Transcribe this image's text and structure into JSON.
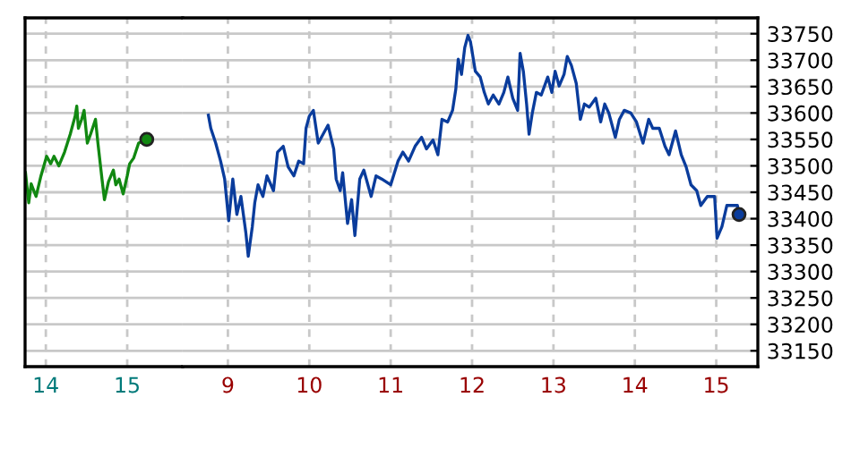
{
  "chart_data": [
    {
      "type": "line",
      "tick_labels": "x",
      "xlim": [
        13.745,
        15.681
      ],
      "xticks": [
        14,
        15
      ],
      "ylim": [
        33120,
        33780
      ],
      "yticks": [
        33150,
        33200,
        33250,
        33300,
        33350,
        33400,
        33450,
        33500,
        33550,
        33600,
        33650,
        33700,
        33750
      ],
      "grid": true,
      "series": [
        {
          "color": "#118811",
          "x": [
            13.75,
            13.79,
            13.82,
            13.88,
            13.94,
            14.01,
            14.06,
            14.1,
            14.16,
            14.23,
            14.3,
            14.36,
            14.38,
            14.4,
            14.44,
            14.47,
            14.51,
            14.55,
            14.61,
            14.64,
            14.69,
            14.72,
            14.77,
            14.83,
            14.86,
            14.9,
            14.95,
            15.0,
            15.03,
            15.08,
            15.14,
            15.24
          ],
          "values": [
            33487,
            33430,
            33466,
            33442,
            33481,
            33518,
            33504,
            33518,
            33500,
            33526,
            33560,
            33594,
            33613,
            33571,
            33588,
            33605,
            33543,
            33560,
            33588,
            33543,
            33475,
            33436,
            33470,
            33492,
            33464,
            33475,
            33447,
            33481,
            33504,
            33515,
            33543,
            33550
          ]
        }
      ]
    },
    {
      "type": "line",
      "xlim": [
        8.444,
        15.511
      ],
      "xticks": [
        9,
        10,
        11,
        12,
        13,
        14,
        15
      ],
      "ylim": [
        33120,
        33780
      ],
      "yticks": [
        33150,
        33200,
        33250,
        33300,
        33350,
        33400,
        33450,
        33500,
        33550,
        33600,
        33650,
        33700,
        33750
      ],
      "grid": true,
      "series": [
        {
          "color": "#0a3c9c",
          "x": [
            8.76,
            8.79,
            8.85,
            8.91,
            8.96,
            9.01,
            9.06,
            9.11,
            9.16,
            9.22,
            9.25,
            9.3,
            9.33,
            9.37,
            9.43,
            9.48,
            9.56,
            9.61,
            9.68,
            9.74,
            9.81,
            9.87,
            9.93,
            9.96,
            10.0,
            10.05,
            10.11,
            10.17,
            10.23,
            10.3,
            10.33,
            10.38,
            10.41,
            10.47,
            10.52,
            10.56,
            10.62,
            10.67,
            10.76,
            10.82,
            10.89,
            11.0,
            11.09,
            11.15,
            11.22,
            11.3,
            11.38,
            11.44,
            11.52,
            11.58,
            11.63,
            11.7,
            11.76,
            11.8,
            11.83,
            11.87,
            11.91,
            11.95,
            11.98,
            12.04,
            12.1,
            12.15,
            12.2,
            12.26,
            12.33,
            12.39,
            12.44,
            12.5,
            12.56,
            12.59,
            12.63,
            12.67,
            12.7,
            12.74,
            12.79,
            12.85,
            12.93,
            12.98,
            13.02,
            13.07,
            13.13,
            13.17,
            13.22,
            13.28,
            13.33,
            13.38,
            13.44,
            13.52,
            13.58,
            13.63,
            13.68,
            13.76,
            13.81,
            13.87,
            13.95,
            14.02,
            14.1,
            14.17,
            14.22,
            14.3,
            14.37,
            14.42,
            14.5,
            14.57,
            14.63,
            14.69,
            14.76,
            14.81,
            14.89,
            14.98,
            15.01,
            15.07,
            15.13,
            15.26,
            15.28
          ],
          "values": [
            33596,
            33571,
            33543,
            33509,
            33475,
            33396,
            33475,
            33408,
            33442,
            33374,
            33329,
            33385,
            33430,
            33464,
            33442,
            33481,
            33453,
            33526,
            33537,
            33498,
            33481,
            33509,
            33504,
            33571,
            33594,
            33605,
            33543,
            33560,
            33577,
            33532,
            33475,
            33453,
            33487,
            33391,
            33436,
            33368,
            33475,
            33492,
            33442,
            33481,
            33475,
            33464,
            33509,
            33526,
            33509,
            33537,
            33554,
            33532,
            33549,
            33521,
            33588,
            33583,
            33605,
            33645,
            33702,
            33673,
            33724,
            33747,
            33735,
            33679,
            33668,
            33639,
            33617,
            33634,
            33617,
            33639,
            33668,
            33628,
            33605,
            33713,
            33679,
            33617,
            33560,
            33600,
            33639,
            33634,
            33668,
            33639,
            33679,
            33651,
            33673,
            33707,
            33690,
            33656,
            33588,
            33617,
            33611,
            33628,
            33583,
            33617,
            33600,
            33554,
            33588,
            33605,
            33600,
            33583,
            33543,
            33588,
            33571,
            33571,
            33537,
            33521,
            33566,
            33521,
            33498,
            33464,
            33453,
            33425,
            33442,
            33442,
            33363,
            33385,
            33425,
            33425,
            33408
          ]
        }
      ]
    }
  ]
}
